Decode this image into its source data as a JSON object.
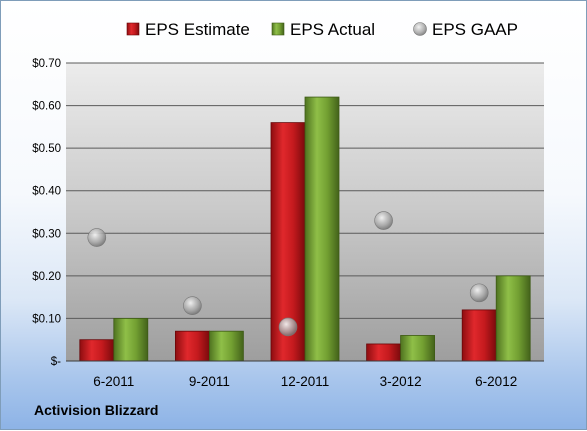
{
  "chart_data": {
    "type": "bar",
    "categories": [
      "6-2011",
      "9-2011",
      "12-2011",
      "3-2012",
      "6-2012"
    ],
    "series": [
      {
        "name": "EPS Estimate",
        "kind": "bar",
        "color": "#c0181c",
        "values": [
          0.05,
          0.07,
          0.56,
          0.04,
          0.12
        ]
      },
      {
        "name": "EPS Actual",
        "kind": "bar",
        "color": "#6e9a2e",
        "values": [
          0.1,
          0.07,
          0.62,
          0.06,
          0.2
        ]
      },
      {
        "name": "EPS GAAP",
        "kind": "scatter",
        "color": "#9a9a9a",
        "values": [
          0.29,
          0.13,
          0.08,
          0.33,
          0.16
        ]
      }
    ],
    "yticks": [
      {
        "value": 0.7,
        "label": "$0.70"
      },
      {
        "value": 0.6,
        "label": "$0.60"
      },
      {
        "value": 0.5,
        "label": "$0.50"
      },
      {
        "value": 0.4,
        "label": "$0.40"
      },
      {
        "value": 0.3,
        "label": "$0.30"
      },
      {
        "value": 0.2,
        "label": "$0.20"
      },
      {
        "value": 0.1,
        "label": "$0.10"
      },
      {
        "value": 0.0,
        "label": "$-"
      }
    ],
    "ylim": [
      0,
      0.7
    ],
    "grid": true,
    "legend_position": "top"
  },
  "footer": {
    "company": "Activision Blizzard"
  }
}
